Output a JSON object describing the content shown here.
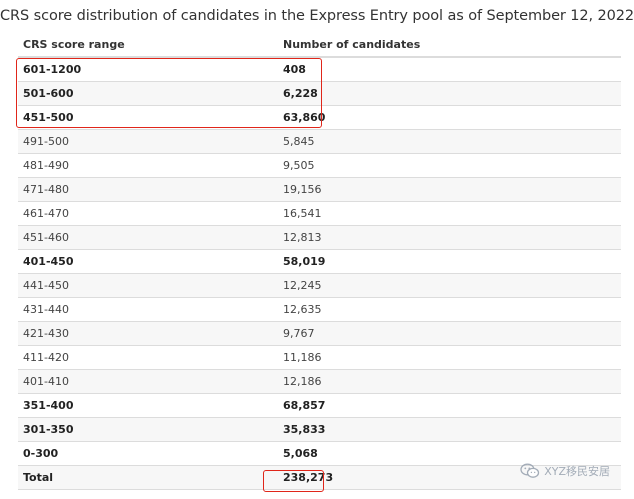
{
  "caption": "CRS score distribution of candidates in the Express Entry pool as of September 12, 2022",
  "table": {
    "headers": [
      "CRS score range",
      "Number of candidates"
    ],
    "rows": [
      {
        "range": "601-1200",
        "count": "408",
        "bold": true
      },
      {
        "range": "501-600",
        "count": "6,228",
        "bold": true
      },
      {
        "range": "451-500",
        "count": "63,860",
        "bold": true
      },
      {
        "range": "491-500",
        "count": "5,845",
        "bold": false
      },
      {
        "range": "481-490",
        "count": "9,505",
        "bold": false
      },
      {
        "range": "471-480",
        "count": "19,156",
        "bold": false
      },
      {
        "range": "461-470",
        "count": "16,541",
        "bold": false
      },
      {
        "range": "451-460",
        "count": "12,813",
        "bold": false
      },
      {
        "range": "401-450",
        "count": "58,019",
        "bold": true
      },
      {
        "range": "441-450",
        "count": "12,245",
        "bold": false
      },
      {
        "range": "431-440",
        "count": "12,635",
        "bold": false
      },
      {
        "range": "421-430",
        "count": "9,767",
        "bold": false
      },
      {
        "range": "411-420",
        "count": "11,186",
        "bold": false
      },
      {
        "range": "401-410",
        "count": "12,186",
        "bold": false
      },
      {
        "range": "351-400",
        "count": "68,857",
        "bold": true
      },
      {
        "range": "301-350",
        "count": "35,833",
        "bold": true
      },
      {
        "range": "0-300",
        "count": "5,068",
        "bold": true
      },
      {
        "range": "Total",
        "count": "238,273",
        "bold": true
      }
    ]
  },
  "watermark": {
    "icon": "wechat-icon",
    "text": "XYZ移民安居"
  },
  "colors": {
    "highlight": "#e0261a",
    "text": "#333333",
    "divider": "#dcdcdc"
  }
}
